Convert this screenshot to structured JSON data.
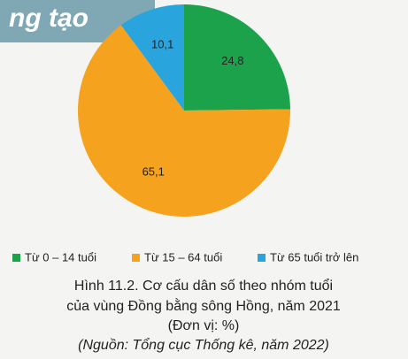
{
  "banner": "ng tạo",
  "chart_data": {
    "type": "pie",
    "categories": [
      "Từ 0 – 14 tuổi",
      "Từ 15 – 64 tuổi",
      "Từ 65 tuổi trở lên"
    ],
    "values": [
      24.8,
      65.1,
      10.1
    ],
    "value_labels": [
      "24,8",
      "65,1",
      "10,1"
    ],
    "colors": [
      "#1ba24b",
      "#f5a21e",
      "#2aa4dc"
    ],
    "title_lines": [
      "Hình 11.2. Cơ cấu dân số theo nhóm tuổi",
      "của vùng Đồng bằng sông Hồng, năm 2021",
      "(Đơn vị: %)"
    ],
    "source": "(Nguồn: Tổng cục Thống kê, năm 2022)"
  }
}
